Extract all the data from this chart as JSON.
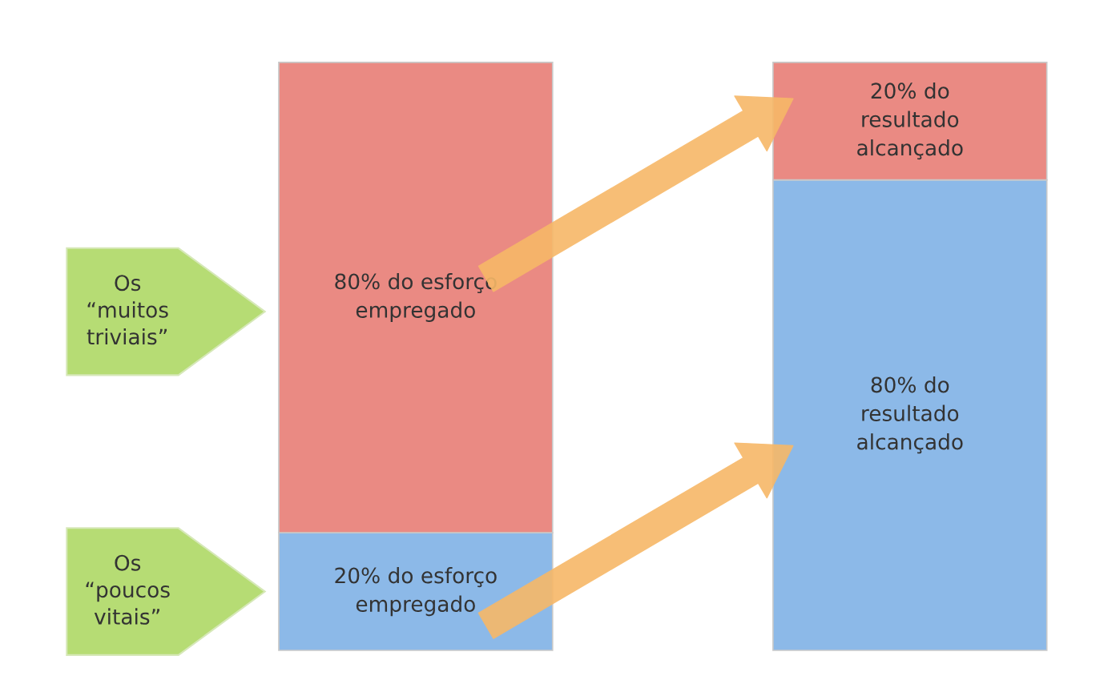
{
  "chart_data": {
    "type": "bar",
    "stacked": true,
    "categories": [
      null,
      null
    ],
    "series": [
      {
        "color": "#8cb9e8",
        "values": [
          20,
          80
        ],
        "value_labels": [
          "20% do esforço\nempregado",
          "80% do\nresultado\nalcançado"
        ]
      },
      {
        "color": "#ea8a83",
        "values": [
          80,
          20
        ],
        "value_labels": [
          "80% do esforço\nempregado",
          "20% do\nresultado\nalcançado"
        ]
      }
    ],
    "annotations": [
      "Os\n“muitos\ntriviais”",
      "Os\n“poucos\nvitais”"
    ]
  }
}
